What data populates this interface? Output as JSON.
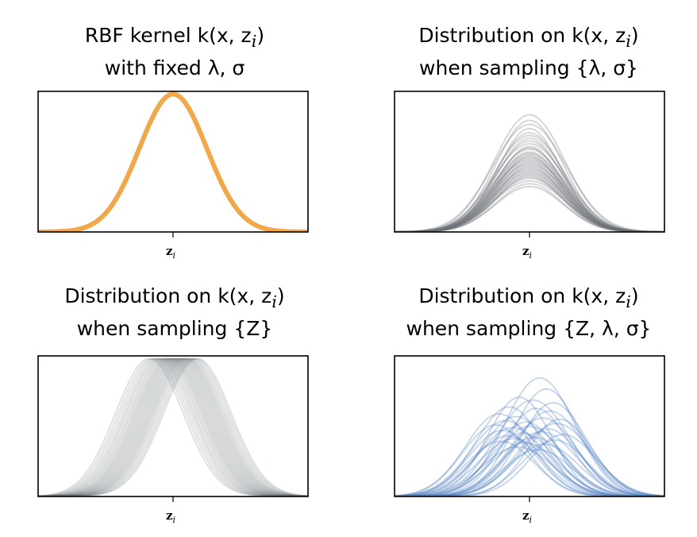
{
  "colors": {
    "orange": "#f0a84a",
    "gray": "#6b7076",
    "blue": "#4f7ec1",
    "axis": "#000000"
  },
  "panels": [
    {
      "id": "fixed",
      "title_line1": "RBF kernel k(x, z",
      "title_line1_sub": "i",
      "title_line1_end": ")",
      "title_line2": "with fixed λ, σ",
      "tick_label": "z",
      "tick_sub": "i"
    },
    {
      "id": "sample-lambda-sigma",
      "title_line1": "Distribution on k(x, z",
      "title_line1_sub": "i",
      "title_line1_end": ")",
      "title_line2": "when sampling {λ, σ}",
      "tick_label": "z",
      "tick_sub": "i"
    },
    {
      "id": "sample-z",
      "title_line1": "Distribution on k(x, z",
      "title_line1_sub": "i",
      "title_line1_end": ")",
      "title_line2": "when sampling {Z}",
      "tick_label": "z",
      "tick_sub": "i"
    },
    {
      "id": "sample-all",
      "title_line1": "Distribution on k(x, z",
      "title_line1_sub": "i",
      "title_line1_end": ")",
      "title_line2": "when sampling {Z, λ, σ}",
      "tick_label": "z",
      "tick_sub": "i"
    }
  ],
  "chart_data": [
    {
      "type": "line",
      "panel": "fixed",
      "xlim": [
        -4,
        4
      ],
      "ylim": [
        0,
        1.02
      ],
      "color": "orange",
      "curves": [
        {
          "center": 0,
          "amplitude": 1.0,
          "width": 1.0
        }
      ]
    },
    {
      "type": "line",
      "panel": "sample-lambda-sigma",
      "xlim": [
        -4,
        4
      ],
      "ylim": [
        0,
        1.02
      ],
      "color": "gray",
      "curves": [
        {
          "center": 0,
          "amplitude": 0.85,
          "width": 1.05
        },
        {
          "center": 0,
          "amplitude": 0.81,
          "width": 1.0
        },
        {
          "center": 0,
          "amplitude": 0.78,
          "width": 1.1
        },
        {
          "center": 0,
          "amplitude": 0.75,
          "width": 0.95
        },
        {
          "center": 0,
          "amplitude": 0.72,
          "width": 1.0
        },
        {
          "center": 0,
          "amplitude": 0.7,
          "width": 1.05
        },
        {
          "center": 0,
          "amplitude": 0.68,
          "width": 0.98
        },
        {
          "center": 0,
          "amplitude": 0.66,
          "width": 1.02
        },
        {
          "center": 0,
          "amplitude": 0.64,
          "width": 1.08
        },
        {
          "center": 0,
          "amplitude": 0.62,
          "width": 0.97
        },
        {
          "center": 0,
          "amplitude": 0.61,
          "width": 1.0
        },
        {
          "center": 0,
          "amplitude": 0.6,
          "width": 1.04
        },
        {
          "center": 0,
          "amplitude": 0.58,
          "width": 0.99
        },
        {
          "center": 0,
          "amplitude": 0.57,
          "width": 1.06
        },
        {
          "center": 0,
          "amplitude": 0.56,
          "width": 1.0
        },
        {
          "center": 0,
          "amplitude": 0.55,
          "width": 0.96
        },
        {
          "center": 0,
          "amplitude": 0.54,
          "width": 1.03
        },
        {
          "center": 0,
          "amplitude": 0.53,
          "width": 1.0
        },
        {
          "center": 0,
          "amplitude": 0.52,
          "width": 1.07
        },
        {
          "center": 0,
          "amplitude": 0.51,
          "width": 0.98
        },
        {
          "center": 0,
          "amplitude": 0.5,
          "width": 1.01
        },
        {
          "center": 0,
          "amplitude": 0.49,
          "width": 1.05
        },
        {
          "center": 0,
          "amplitude": 0.48,
          "width": 0.97
        },
        {
          "center": 0,
          "amplitude": 0.47,
          "width": 1.02
        },
        {
          "center": 0,
          "amplitude": 0.46,
          "width": 1.0
        },
        {
          "center": 0,
          "amplitude": 0.45,
          "width": 1.04
        },
        {
          "center": 0,
          "amplitude": 0.44,
          "width": 0.99
        },
        {
          "center": 0,
          "amplitude": 0.43,
          "width": 1.03
        },
        {
          "center": 0,
          "amplitude": 0.42,
          "width": 1.0
        },
        {
          "center": 0,
          "amplitude": 0.41,
          "width": 0.96
        },
        {
          "center": 0,
          "amplitude": 0.4,
          "width": 1.02
        },
        {
          "center": 0,
          "amplitude": 0.39,
          "width": 1.0
        },
        {
          "center": 0,
          "amplitude": 0.37,
          "width": 1.05
        },
        {
          "center": 0,
          "amplitude": 0.35,
          "width": 0.98
        },
        {
          "center": 0,
          "amplitude": 0.33,
          "width": 1.0
        }
      ]
    },
    {
      "type": "line",
      "panel": "sample-z",
      "xlim": [
        -4,
        4
      ],
      "ylim": [
        0,
        1.02
      ],
      "color": "gray",
      "curves": [
        {
          "center": -0.7,
          "amplitude": 1.0,
          "width": 1.0
        },
        {
          "center": -0.62,
          "amplitude": 1.0,
          "width": 1.0
        },
        {
          "center": -0.55,
          "amplitude": 1.0,
          "width": 1.0
        },
        {
          "center": -0.48,
          "amplitude": 1.0,
          "width": 1.0
        },
        {
          "center": -0.42,
          "amplitude": 1.0,
          "width": 1.0
        },
        {
          "center": -0.37,
          "amplitude": 1.0,
          "width": 1.0
        },
        {
          "center": -0.31,
          "amplitude": 1.0,
          "width": 1.0
        },
        {
          "center": -0.26,
          "amplitude": 1.0,
          "width": 1.0
        },
        {
          "center": -0.21,
          "amplitude": 1.0,
          "width": 1.0
        },
        {
          "center": -0.16,
          "amplitude": 1.0,
          "width": 1.0
        },
        {
          "center": -0.12,
          "amplitude": 1.0,
          "width": 1.0
        },
        {
          "center": -0.08,
          "amplitude": 1.0,
          "width": 1.0
        },
        {
          "center": -0.04,
          "amplitude": 1.0,
          "width": 1.0
        },
        {
          "center": 0.0,
          "amplitude": 1.0,
          "width": 1.0
        },
        {
          "center": 0.04,
          "amplitude": 1.0,
          "width": 1.0
        },
        {
          "center": 0.08,
          "amplitude": 1.0,
          "width": 1.0
        },
        {
          "center": 0.12,
          "amplitude": 1.0,
          "width": 1.0
        },
        {
          "center": 0.16,
          "amplitude": 1.0,
          "width": 1.0
        },
        {
          "center": 0.2,
          "amplitude": 1.0,
          "width": 1.0
        },
        {
          "center": 0.24,
          "amplitude": 1.0,
          "width": 1.0
        },
        {
          "center": 0.28,
          "amplitude": 1.0,
          "width": 1.0
        },
        {
          "center": 0.32,
          "amplitude": 1.0,
          "width": 1.0
        },
        {
          "center": 0.36,
          "amplitude": 1.0,
          "width": 1.0
        },
        {
          "center": 0.4,
          "amplitude": 1.0,
          "width": 1.0
        },
        {
          "center": 0.44,
          "amplitude": 1.0,
          "width": 1.0
        },
        {
          "center": 0.49,
          "amplitude": 1.0,
          "width": 1.0
        },
        {
          "center": 0.54,
          "amplitude": 1.0,
          "width": 1.0
        },
        {
          "center": 0.6,
          "amplitude": 1.0,
          "width": 1.0
        },
        {
          "center": 0.66,
          "amplitude": 1.0,
          "width": 1.0
        },
        {
          "center": 0.72,
          "amplitude": 1.0,
          "width": 1.0
        }
      ]
    },
    {
      "type": "line",
      "panel": "sample-all",
      "xlim": [
        -4,
        4
      ],
      "ylim": [
        0,
        1.02
      ],
      "color": "blue",
      "curves": [
        {
          "center": 0.3,
          "amplitude": 0.86,
          "width": 1.05
        },
        {
          "center": 0.5,
          "amplitude": 0.78,
          "width": 1.0
        },
        {
          "center": -0.3,
          "amplitude": 0.72,
          "width": 0.95
        },
        {
          "center": 0.1,
          "amplitude": 0.7,
          "width": 1.1
        },
        {
          "center": 0.7,
          "amplitude": 0.68,
          "width": 1.0
        },
        {
          "center": -0.6,
          "amplitude": 0.65,
          "width": 1.0
        },
        {
          "center": 0.2,
          "amplitude": 0.64,
          "width": 0.98
        },
        {
          "center": 0.6,
          "amplitude": 0.62,
          "width": 1.05
        },
        {
          "center": -0.9,
          "amplitude": 0.6,
          "width": 1.0
        },
        {
          "center": -0.4,
          "amplitude": 0.58,
          "width": 1.02
        },
        {
          "center": 0.4,
          "amplitude": 0.57,
          "width": 1.0
        },
        {
          "center": 0.9,
          "amplitude": 0.56,
          "width": 0.96
        },
        {
          "center": -0.7,
          "amplitude": 0.55,
          "width": 1.04
        },
        {
          "center": -0.1,
          "amplitude": 0.54,
          "width": 1.0
        },
        {
          "center": 0.8,
          "amplitude": 0.53,
          "width": 1.06
        },
        {
          "center": -1.0,
          "amplitude": 0.52,
          "width": 0.99
        },
        {
          "center": 0.0,
          "amplitude": 0.51,
          "width": 1.0
        },
        {
          "center": -0.5,
          "amplitude": 0.5,
          "width": 1.03
        },
        {
          "center": 0.55,
          "amplitude": 0.49,
          "width": 0.97
        },
        {
          "center": -0.8,
          "amplitude": 0.48,
          "width": 1.0
        },
        {
          "center": 0.35,
          "amplitude": 0.47,
          "width": 1.05
        },
        {
          "center": -0.2,
          "amplitude": 0.46,
          "width": 1.0
        },
        {
          "center": 1.0,
          "amplitude": 0.45,
          "width": 0.98
        },
        {
          "center": -0.65,
          "amplitude": 0.44,
          "width": 1.02
        },
        {
          "center": 0.15,
          "amplitude": 0.43,
          "width": 1.0
        },
        {
          "center": -0.45,
          "amplitude": 0.42,
          "width": 1.04
        },
        {
          "center": 0.75,
          "amplitude": 0.41,
          "width": 0.96
        },
        {
          "center": -0.85,
          "amplitude": 0.4,
          "width": 1.0
        },
        {
          "center": -0.15,
          "amplitude": 0.39,
          "width": 1.02
        },
        {
          "center": 0.45,
          "amplitude": 0.38,
          "width": 1.0
        },
        {
          "center": -0.35,
          "amplitude": 0.36,
          "width": 1.05
        },
        {
          "center": 0.25,
          "amplitude": 0.34,
          "width": 1.0
        }
      ]
    }
  ]
}
